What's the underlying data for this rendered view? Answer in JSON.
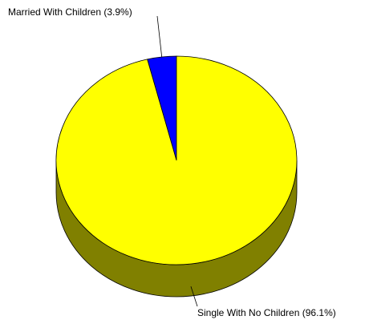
{
  "chart_data": {
    "type": "pie",
    "style": "3d",
    "title": "",
    "slices": [
      {
        "label": "Married With Children (3.9%)",
        "value": 3.9,
        "color": "#0000ff"
      },
      {
        "label": "Single With No Children (96.1%)",
        "value": 96.1,
        "color": "#ffff00"
      }
    ],
    "side_color": "#808000",
    "start": "12 o'clock",
    "direction": "counter-clockwise from the small slice"
  }
}
